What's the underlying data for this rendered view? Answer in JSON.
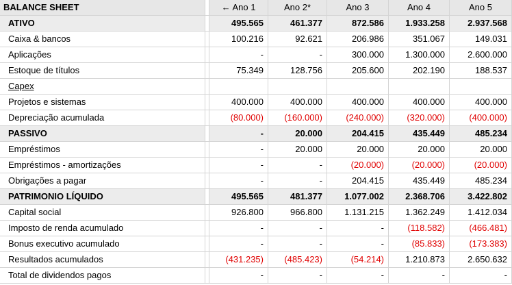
{
  "sheet": {
    "title": "BALANCE SHEET",
    "years": [
      "← Ano 1",
      "Ano 2*",
      "Ano 3",
      "Ano 4",
      "Ano 5"
    ],
    "rows": [
      {
        "label": "ATIVO",
        "type": "section",
        "values": [
          "495.565",
          "461.377",
          "872.586",
          "1.933.258",
          "2.937.568"
        ],
        "neg": [
          false,
          false,
          false,
          false,
          false
        ]
      },
      {
        "label": "Caixa & bancos",
        "type": "item",
        "values": [
          "100.216",
          "92.621",
          "206.986",
          "351.067",
          "149.031"
        ],
        "neg": [
          false,
          false,
          false,
          false,
          false
        ]
      },
      {
        "label": "Aplicações",
        "type": "item",
        "values": [
          "-",
          "-",
          "300.000",
          "1.300.000",
          "2.600.000"
        ],
        "neg": [
          false,
          false,
          false,
          false,
          false
        ]
      },
      {
        "label": "Estoque de títulos",
        "type": "item",
        "values": [
          "75.349",
          "128.756",
          "205.600",
          "202.190",
          "188.537"
        ],
        "neg": [
          false,
          false,
          false,
          false,
          false
        ]
      },
      {
        "label": "Capex",
        "type": "subheader",
        "values": [
          "",
          "",
          "",
          "",
          ""
        ],
        "neg": [
          false,
          false,
          false,
          false,
          false
        ]
      },
      {
        "label": "Projetos e sistemas",
        "type": "item",
        "values": [
          "400.000",
          "400.000",
          "400.000",
          "400.000",
          "400.000"
        ],
        "neg": [
          false,
          false,
          false,
          false,
          false
        ]
      },
      {
        "label": "Depreciação acumulada",
        "type": "item",
        "values": [
          "(80.000)",
          "(160.000)",
          "(240.000)",
          "(320.000)",
          "(400.000)"
        ],
        "neg": [
          true,
          true,
          true,
          true,
          true
        ]
      },
      {
        "label": "PASSIVO",
        "type": "section",
        "values": [
          "-",
          "20.000",
          "204.415",
          "435.449",
          "485.234"
        ],
        "neg": [
          false,
          false,
          false,
          false,
          false
        ]
      },
      {
        "label": "Empréstimos",
        "type": "item",
        "values": [
          "-",
          "20.000",
          "20.000",
          "20.000",
          "20.000"
        ],
        "neg": [
          false,
          false,
          false,
          false,
          false
        ]
      },
      {
        "label": "Empréstimos - amortizações",
        "type": "item",
        "values": [
          "-",
          "-",
          "(20.000)",
          "(20.000)",
          "(20.000)"
        ],
        "neg": [
          false,
          false,
          true,
          true,
          true
        ]
      },
      {
        "label": "Obrigações a pagar",
        "type": "item",
        "values": [
          "-",
          "-",
          "204.415",
          "435.449",
          "485.234"
        ],
        "neg": [
          false,
          false,
          false,
          false,
          false
        ]
      },
      {
        "label": "PATRIMONIO LÍQUIDO",
        "type": "section",
        "values": [
          "495.565",
          "481.377",
          "1.077.002",
          "2.368.706",
          "3.422.802"
        ],
        "neg": [
          false,
          false,
          false,
          false,
          false
        ]
      },
      {
        "label": "Capital social",
        "type": "item",
        "values": [
          "926.800",
          "966.800",
          "1.131.215",
          "1.362.249",
          "1.412.034"
        ],
        "neg": [
          false,
          false,
          false,
          false,
          false
        ]
      },
      {
        "label": "Imposto de renda acumulado",
        "type": "item",
        "values": [
          "-",
          "-",
          "-",
          "(118.582)",
          "(466.481)"
        ],
        "neg": [
          false,
          false,
          false,
          true,
          true
        ]
      },
      {
        "label": "Bonus executivo acumulado",
        "type": "item",
        "values": [
          "-",
          "-",
          "-",
          "(85.833)",
          "(173.383)"
        ],
        "neg": [
          false,
          false,
          false,
          true,
          true
        ]
      },
      {
        "label": "Resultados acumulados",
        "type": "item",
        "values": [
          "(431.235)",
          "(485.423)",
          "(54.214)",
          "1.210.873",
          "2.650.632"
        ],
        "neg": [
          true,
          true,
          true,
          false,
          false
        ]
      },
      {
        "label": "Total de dividendos pagos",
        "type": "item",
        "values": [
          "-",
          "-",
          "-",
          "-",
          "-"
        ],
        "neg": [
          false,
          false,
          false,
          false,
          false
        ]
      }
    ]
  }
}
